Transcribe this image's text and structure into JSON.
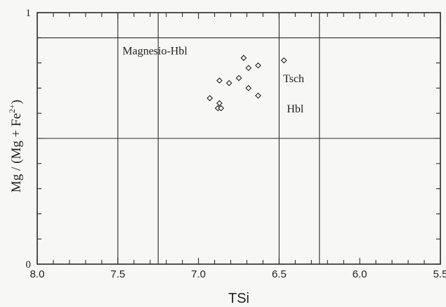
{
  "chart_data": {
    "type": "scatter",
    "xlabel": "TSi",
    "ylabel": "Mg / (Mg + Fe",
    "ylabel_superscript": "2+",
    "ylabel_close": ")",
    "xlim": [
      8.0,
      5.5
    ],
    "ylim": [
      0,
      1
    ],
    "x_reversed": true,
    "x_ticks": [
      {
        "value": 8.0,
        "label": "8.0"
      },
      {
        "value": 7.5,
        "label": "7.5"
      },
      {
        "value": 7.0,
        "label": "7.0"
      },
      {
        "value": 6.5,
        "label": "6.5"
      },
      {
        "value": 6.0,
        "label": "6.0"
      },
      {
        "value": 5.5,
        "label": "5.5"
      }
    ],
    "y_ticks": [
      {
        "value": 0,
        "label": "0"
      },
      {
        "value": 1,
        "label": "1"
      }
    ],
    "field_boundaries": {
      "vertical_x": [
        7.5,
        7.25,
        6.5,
        6.25
      ],
      "horizontal_y": [
        0.9,
        0.5
      ]
    },
    "field_labels": [
      {
        "text": "Magnesio-Hbl",
        "x": 7.27,
        "y": 0.85
      },
      {
        "text": "Tsch",
        "x": 6.41,
        "y": 0.74
      },
      {
        "text": "Hbl",
        "x": 6.4,
        "y": 0.62
      }
    ],
    "series": [
      {
        "marker": "diamond",
        "points": [
          {
            "x": 6.47,
            "y": 0.81
          },
          {
            "x": 6.72,
            "y": 0.82
          },
          {
            "x": 6.63,
            "y": 0.79
          },
          {
            "x": 6.69,
            "y": 0.78
          },
          {
            "x": 6.75,
            "y": 0.74
          },
          {
            "x": 6.81,
            "y": 0.72
          },
          {
            "x": 6.87,
            "y": 0.73
          },
          {
            "x": 6.69,
            "y": 0.7
          },
          {
            "x": 6.63,
            "y": 0.67
          },
          {
            "x": 6.93,
            "y": 0.66
          },
          {
            "x": 6.87,
            "y": 0.64
          },
          {
            "x": 6.88,
            "y": 0.62
          },
          {
            "x": 6.86,
            "y": 0.62
          }
        ]
      }
    ]
  }
}
